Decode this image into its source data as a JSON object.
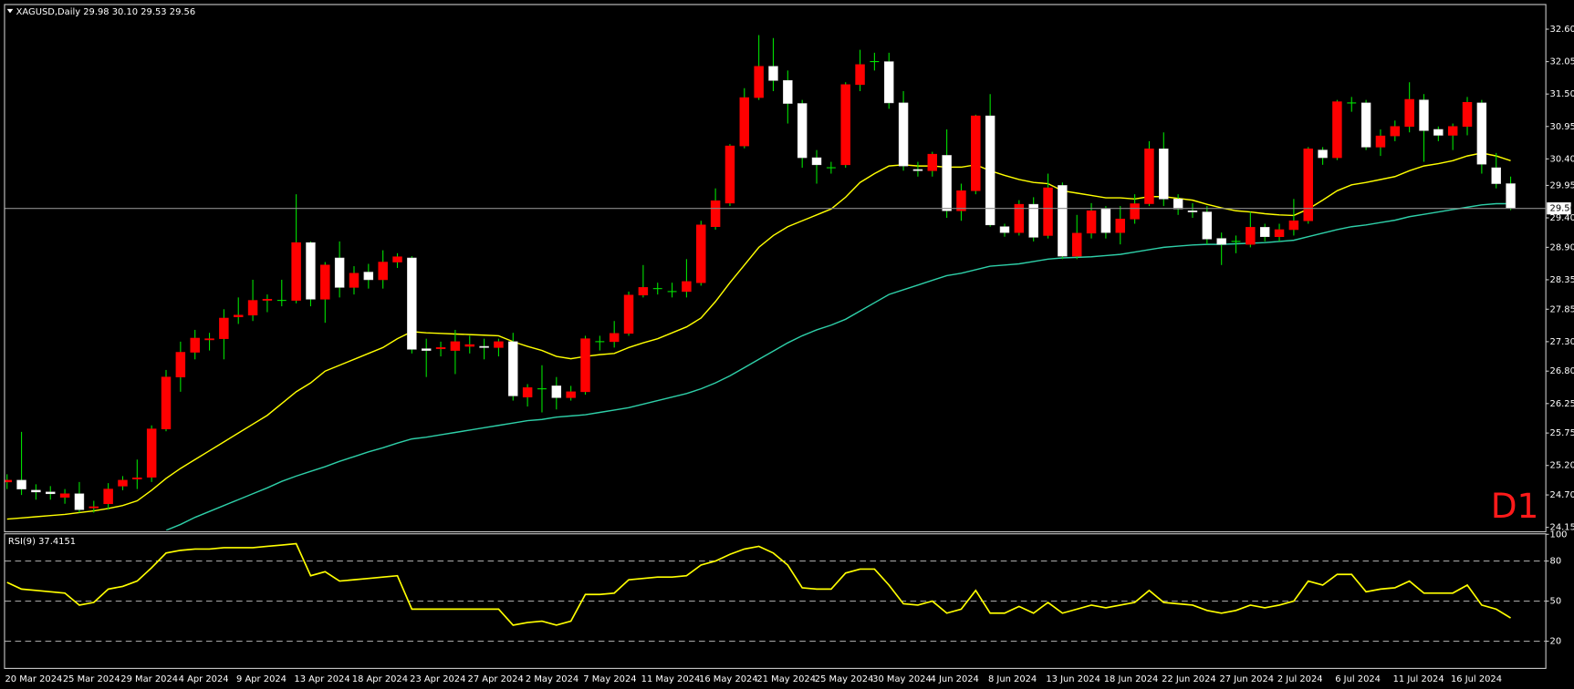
{
  "chart_data": [
    {
      "type": "candlestick",
      "title": "XAGUSD,Daily 29.98 30.10 29.53 29.56",
      "badge": "D1",
      "badge_color": "#ff1a1a",
      "up_color": "#ff0000",
      "down_color": "#ffffff",
      "wick_color": "#00e000",
      "last_price_color": "#8c8c8c",
      "categories": [
        "20 Mar 2024",
        null,
        null,
        null,
        "25 Mar 2024",
        null,
        null,
        null,
        "29 Mar 2024",
        null,
        null,
        null,
        "4 Apr 2024",
        null,
        null,
        null,
        "9 Apr 2024",
        null,
        null,
        null,
        "13 Apr 2024",
        null,
        null,
        null,
        "18 Apr 2024",
        null,
        null,
        null,
        "23 Apr 2024",
        null,
        null,
        null,
        "27 Apr 2024",
        null,
        null,
        null,
        "2 May 2024",
        null,
        null,
        null,
        "7 May 2024",
        null,
        null,
        null,
        "11 May 2024",
        null,
        null,
        null,
        "16 May 2024",
        null,
        null,
        null,
        "21 May 2024",
        null,
        null,
        null,
        "25 May 2024",
        null,
        null,
        null,
        "30 May 2024",
        null,
        null,
        null,
        "4 Jun 2024",
        null,
        null,
        null,
        "8 Jun 2024",
        null,
        null,
        null,
        "13 Jun 2024",
        null,
        null,
        null,
        "18 Jun 2024",
        null,
        null,
        null,
        "22 Jun 2024",
        null,
        null,
        null,
        "27 Jun 2024",
        null,
        null,
        null,
        "2 Jul 2024",
        null,
        null,
        null,
        "6 Jul 2024",
        null,
        null,
        null,
        "11 Jul 2024",
        null,
        null,
        null,
        "16 Jul 2024",
        null,
        null,
        null,
        null
      ],
      "open": [
        24.92,
        24.95,
        24.78,
        24.75,
        24.66,
        24.72,
        24.48,
        24.55,
        24.85,
        24.97,
        25.0,
        25.82,
        26.7,
        27.12,
        27.33,
        27.35,
        27.72,
        27.75,
        28.0,
        28.0,
        28.0,
        28.98,
        28.02,
        28.72,
        28.22,
        28.48,
        28.35,
        28.65,
        28.72,
        27.18,
        27.18,
        27.15,
        27.22,
        27.22,
        27.2,
        27.3,
        26.36,
        26.5,
        26.55,
        26.35,
        26.45,
        27.3,
        27.3,
        27.44,
        28.09,
        28.2,
        28.15,
        28.15,
        28.3,
        29.25,
        29.65,
        30.62,
        31.44,
        31.97,
        31.73,
        31.34,
        30.42,
        30.25,
        30.3,
        31.66,
        32.05,
        32.05,
        31.35,
        30.22,
        30.2,
        30.46,
        29.52,
        29.86,
        31.13,
        29.25,
        29.15,
        29.63,
        29.1,
        29.95,
        28.75,
        29.14,
        29.55,
        29.15,
        29.38,
        29.64,
        30.57,
        29.72,
        29.52,
        29.5,
        29.05,
        29.0,
        28.95,
        29.24,
        29.08,
        29.2,
        29.35,
        30.55,
        30.42,
        31.35,
        31.35,
        30.6,
        30.79,
        30.95,
        31.4,
        30.9,
        30.8,
        30.95,
        31.35,
        30.25,
        29.98
      ],
      "high": [
        25.05,
        25.77,
        24.88,
        24.85,
        24.8,
        24.92,
        24.6,
        24.9,
        25.02,
        25.3,
        25.88,
        26.82,
        27.3,
        27.5,
        27.45,
        27.85,
        28.05,
        28.35,
        28.1,
        28.35,
        29.8,
        29.0,
        28.65,
        29.0,
        28.58,
        28.62,
        28.85,
        28.8,
        28.75,
        27.35,
        27.3,
        27.5,
        27.4,
        27.35,
        27.35,
        27.45,
        26.58,
        26.9,
        26.7,
        26.55,
        27.4,
        27.4,
        27.65,
        28.15,
        28.6,
        28.3,
        28.3,
        28.7,
        29.35,
        29.9,
        30.65,
        31.6,
        32.5,
        32.45,
        31.9,
        31.4,
        30.55,
        30.35,
        31.7,
        32.25,
        32.2,
        32.2,
        31.55,
        30.35,
        30.52,
        30.9,
        29.98,
        31.15,
        31.5,
        29.3,
        29.7,
        29.75,
        30.15,
        30.0,
        29.45,
        29.65,
        29.6,
        29.6,
        29.8,
        30.7,
        30.85,
        29.8,
        29.65,
        29.6,
        29.15,
        29.1,
        29.5,
        29.3,
        29.3,
        29.72,
        30.6,
        30.6,
        31.4,
        31.45,
        31.4,
        30.9,
        31.05,
        31.7,
        31.5,
        30.95,
        31.0,
        31.45,
        31.4,
        30.5,
        30.1
      ],
      "low": [
        24.8,
        24.7,
        24.62,
        24.62,
        24.55,
        24.4,
        24.4,
        24.45,
        24.78,
        24.8,
        24.92,
        25.78,
        26.45,
        27.0,
        27.15,
        27.0,
        27.6,
        27.65,
        27.8,
        27.9,
        27.95,
        27.9,
        27.62,
        28.05,
        28.1,
        28.2,
        28.2,
        28.55,
        27.1,
        26.7,
        27.05,
        26.75,
        27.1,
        27.0,
        27.05,
        26.3,
        26.2,
        26.1,
        26.15,
        26.3,
        26.4,
        27.15,
        27.2,
        27.4,
        28.05,
        28.1,
        28.05,
        28.05,
        28.25,
        29.2,
        29.6,
        30.58,
        31.4,
        31.55,
        31.0,
        30.25,
        29.98,
        30.15,
        30.25,
        31.55,
        31.9,
        31.25,
        30.2,
        30.1,
        30.1,
        29.4,
        29.35,
        29.8,
        29.25,
        29.08,
        29.1,
        29.0,
        29.05,
        28.7,
        28.7,
        29.05,
        29.05,
        28.95,
        29.3,
        29.6,
        29.6,
        29.45,
        29.4,
        28.95,
        28.6,
        28.8,
        28.9,
        29.0,
        29.0,
        29.1,
        29.3,
        30.3,
        30.38,
        31.2,
        30.55,
        30.45,
        30.7,
        30.85,
        30.35,
        30.7,
        30.55,
        30.8,
        30.15,
        29.9,
        29.53
      ],
      "close": [
        24.95,
        24.8,
        24.75,
        24.72,
        24.72,
        24.45,
        24.5,
        24.8,
        24.95,
        24.99,
        25.82,
        26.7,
        27.12,
        27.36,
        27.35,
        27.7,
        27.75,
        28.0,
        28.02,
        28.0,
        28.98,
        28.02,
        28.6,
        28.22,
        28.46,
        28.35,
        28.65,
        28.74,
        27.17,
        27.15,
        27.2,
        27.3,
        27.25,
        27.2,
        27.3,
        26.38,
        26.52,
        26.5,
        26.35,
        26.45,
        27.35,
        27.3,
        27.44,
        28.09,
        28.22,
        28.2,
        28.15,
        28.32,
        29.28,
        29.69,
        30.62,
        31.44,
        31.97,
        31.73,
        31.34,
        30.42,
        30.3,
        30.25,
        31.66,
        32.0,
        32.05,
        31.35,
        30.28,
        30.2,
        30.48,
        29.52,
        29.86,
        31.13,
        29.28,
        29.15,
        29.63,
        29.07,
        29.91,
        28.75,
        29.14,
        29.52,
        29.15,
        29.38,
        29.64,
        30.57,
        29.72,
        29.55,
        29.5,
        29.04,
        28.95,
        29.0,
        29.24,
        29.08,
        29.2,
        29.35,
        30.57,
        30.42,
        31.37,
        31.35,
        30.6,
        30.79,
        30.95,
        31.41,
        30.88,
        30.8,
        30.95,
        31.36,
        30.31,
        29.98,
        29.56
      ],
      "series": [
        {
          "color": "#ffff00",
          "values": [
            24.29,
            24.31,
            24.33,
            24.35,
            24.37,
            24.4,
            24.43,
            24.47,
            24.52,
            24.6,
            24.78,
            24.98,
            25.15,
            25.3,
            25.45,
            25.6,
            25.75,
            25.9,
            26.05,
            26.25,
            26.45,
            26.6,
            26.8,
            26.9,
            27.0,
            27.1,
            27.2,
            27.35,
            27.47,
            27.45,
            27.44,
            27.43,
            27.42,
            27.41,
            27.4,
            27.3,
            27.22,
            27.15,
            27.05,
            27.01,
            27.05,
            27.08,
            27.1,
            27.2,
            27.28,
            27.35,
            27.45,
            27.55,
            27.7,
            27.98,
            28.3,
            28.6,
            28.9,
            29.1,
            29.25,
            29.35,
            29.45,
            29.55,
            29.75,
            30.0,
            30.15,
            30.28,
            30.3,
            30.28,
            30.28,
            30.26,
            30.26,
            30.3,
            30.2,
            30.12,
            30.05,
            30.0,
            29.98,
            29.86,
            29.82,
            29.78,
            29.74,
            29.74,
            29.72,
            29.76,
            29.76,
            29.73,
            29.7,
            29.63,
            29.57,
            29.52,
            29.5,
            29.47,
            29.45,
            29.44,
            29.55,
            29.7,
            29.86,
            29.96,
            30.0,
            30.05,
            30.1,
            30.2,
            30.28,
            30.32,
            30.37,
            30.45,
            30.5,
            30.45,
            30.37
          ]
        },
        {
          "color": "#2ecfa8",
          "values": [
            null,
            null,
            null,
            null,
            null,
            null,
            null,
            null,
            null,
            null,
            null,
            24.1,
            24.2,
            24.32,
            24.42,
            24.52,
            24.62,
            24.72,
            24.82,
            24.93,
            25.02,
            25.1,
            25.18,
            25.27,
            25.35,
            25.43,
            25.5,
            25.58,
            25.65,
            25.68,
            25.72,
            25.76,
            25.8,
            25.84,
            25.88,
            25.92,
            25.96,
            25.98,
            26.02,
            26.04,
            26.06,
            26.1,
            26.14,
            26.18,
            26.24,
            26.3,
            26.36,
            26.42,
            26.5,
            26.6,
            26.72,
            26.86,
            27.0,
            27.14,
            27.28,
            27.4,
            27.5,
            27.58,
            27.68,
            27.82,
            27.96,
            28.1,
            28.18,
            28.26,
            28.34,
            28.42,
            28.46,
            28.52,
            28.58,
            28.6,
            28.62,
            28.66,
            28.7,
            28.72,
            28.73,
            28.74,
            28.76,
            28.78,
            28.82,
            28.86,
            28.9,
            28.92,
            28.94,
            28.95,
            28.95,
            28.96,
            28.97,
            28.98,
            29.0,
            29.02,
            29.08,
            29.14,
            29.2,
            29.25,
            29.28,
            29.32,
            29.36,
            29.42,
            29.46,
            29.5,
            29.54,
            29.58,
            29.62,
            29.64,
            29.64
          ]
        }
      ],
      "ylim": [
        24.1,
        33.01
      ],
      "yticks": [
        {
          "value": 32.6,
          "label": "32.60"
        },
        {
          "value": 32.05,
          "label": "32.05"
        },
        {
          "value": 31.5,
          "label": "31.50"
        },
        {
          "value": 30.95,
          "label": "30.95"
        },
        {
          "value": 30.4,
          "label": "30.40"
        },
        {
          "value": 29.95,
          "label": "29.95"
        },
        {
          "value": 29.4,
          "label": "29.40"
        },
        {
          "value": 28.9,
          "label": "28.90"
        },
        {
          "value": 28.35,
          "label": "28.35"
        },
        {
          "value": 27.85,
          "label": "27.85"
        },
        {
          "value": 27.3,
          "label": "27.30"
        },
        {
          "value": 26.8,
          "label": "26.80"
        },
        {
          "value": 26.25,
          "label": "26.25"
        },
        {
          "value": 25.75,
          "label": "25.75"
        },
        {
          "value": 25.2,
          "label": "25.20"
        },
        {
          "value": 24.7,
          "label": "24.70"
        },
        {
          "value": 24.15,
          "label": "24.15"
        }
      ]
    },
    {
      "type": "line",
      "title": "RSI(9) 37.4151",
      "color": "#ffff00",
      "level_color": "#a0a0a0",
      "values": [
        64,
        59,
        58,
        57,
        56,
        47,
        49,
        59,
        61,
        65,
        75,
        86,
        88,
        89,
        89,
        90,
        90,
        90,
        91,
        92,
        93,
        69,
        72,
        65,
        66,
        67,
        68,
        69,
        44,
        44,
        44,
        44,
        44,
        44,
        44,
        32,
        34,
        35,
        32,
        35,
        55,
        55,
        56,
        66,
        67,
        68,
        68,
        69,
        77,
        80,
        85,
        89,
        91,
        86,
        77,
        60,
        59,
        59,
        71,
        74,
        74,
        62,
        48,
        47,
        50,
        41,
        44,
        58,
        41,
        41,
        46,
        41,
        49,
        41,
        44,
        47,
        45,
        47,
        49,
        58,
        49,
        48,
        47,
        43,
        41,
        43,
        47,
        45,
        47,
        50,
        65,
        62,
        70,
        70,
        57,
        59,
        60,
        65,
        56,
        56,
        56,
        62,
        47,
        44,
        37.4151
      ],
      "ylim": [
        0,
        100
      ],
      "yticks": [
        100,
        80,
        50,
        20
      ],
      "levels": [
        80,
        50,
        20
      ]
    }
  ]
}
